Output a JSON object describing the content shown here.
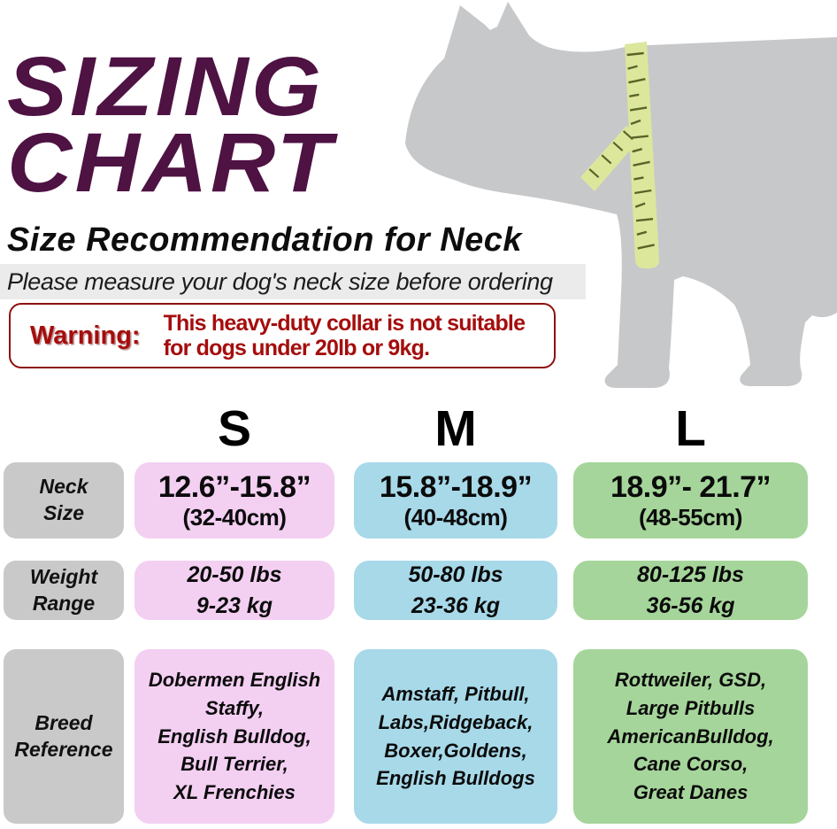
{
  "title": {
    "text": "SIZING\nCHART"
  },
  "subtitle": "Size Recommendation for Neck",
  "note": "Please measure your dog's neck size before ordering",
  "warning": {
    "label": "Warning:",
    "message": "This heavy-duty collar is not suitable\nfor dogs under 20lb or 9kg."
  },
  "illustration": {
    "name": "dog-silhouette-with-measuring-tape",
    "dog_color": "#c7c8ca",
    "tape_color": "#dce79c",
    "tick_color": "#5a6428"
  },
  "colors": {
    "title": "#4e1243",
    "warning_text": "#a50d0d",
    "warning_border": "#8e1111",
    "note_band": "#ebebeb",
    "label_bg": "#c9c9c9",
    "size_s": "#f3cff2",
    "size_m": "#a7d9e9",
    "size_l": "#a5d59a"
  },
  "table": {
    "row_labels": {
      "neck": "Neck\nSize",
      "weight": "Weight\nRange",
      "breed": "Breed\nReference"
    },
    "columns": [
      {
        "header": "S",
        "neck_size": "12.6”-15.8”",
        "neck_size_cm": "(32-40cm)",
        "weight": "20-50 lbs\n9-23 kg",
        "breeds": "Dobermen English\nStaffy,\nEnglish Bulldog,\nBull Terrier,\nXL Frenchies"
      },
      {
        "header": "M",
        "neck_size": "15.8”-18.9”",
        "neck_size_cm": "(40-48cm)",
        "weight": "50-80 lbs\n23-36 kg",
        "breeds": "Amstaff, Pitbull,\nLabs,Ridgeback,\nBoxer,Goldens,\nEnglish Bulldogs"
      },
      {
        "header": "L",
        "neck_size": "18.9”- 21.7”",
        "neck_size_cm": "(48-55cm)",
        "weight": "80-125 lbs\n36-56 kg",
        "breeds": "Rottweiler, GSD,\nLarge Pitbulls\nAmericanBulldog,\nCane Corso,\nGreat Danes"
      }
    ]
  }
}
